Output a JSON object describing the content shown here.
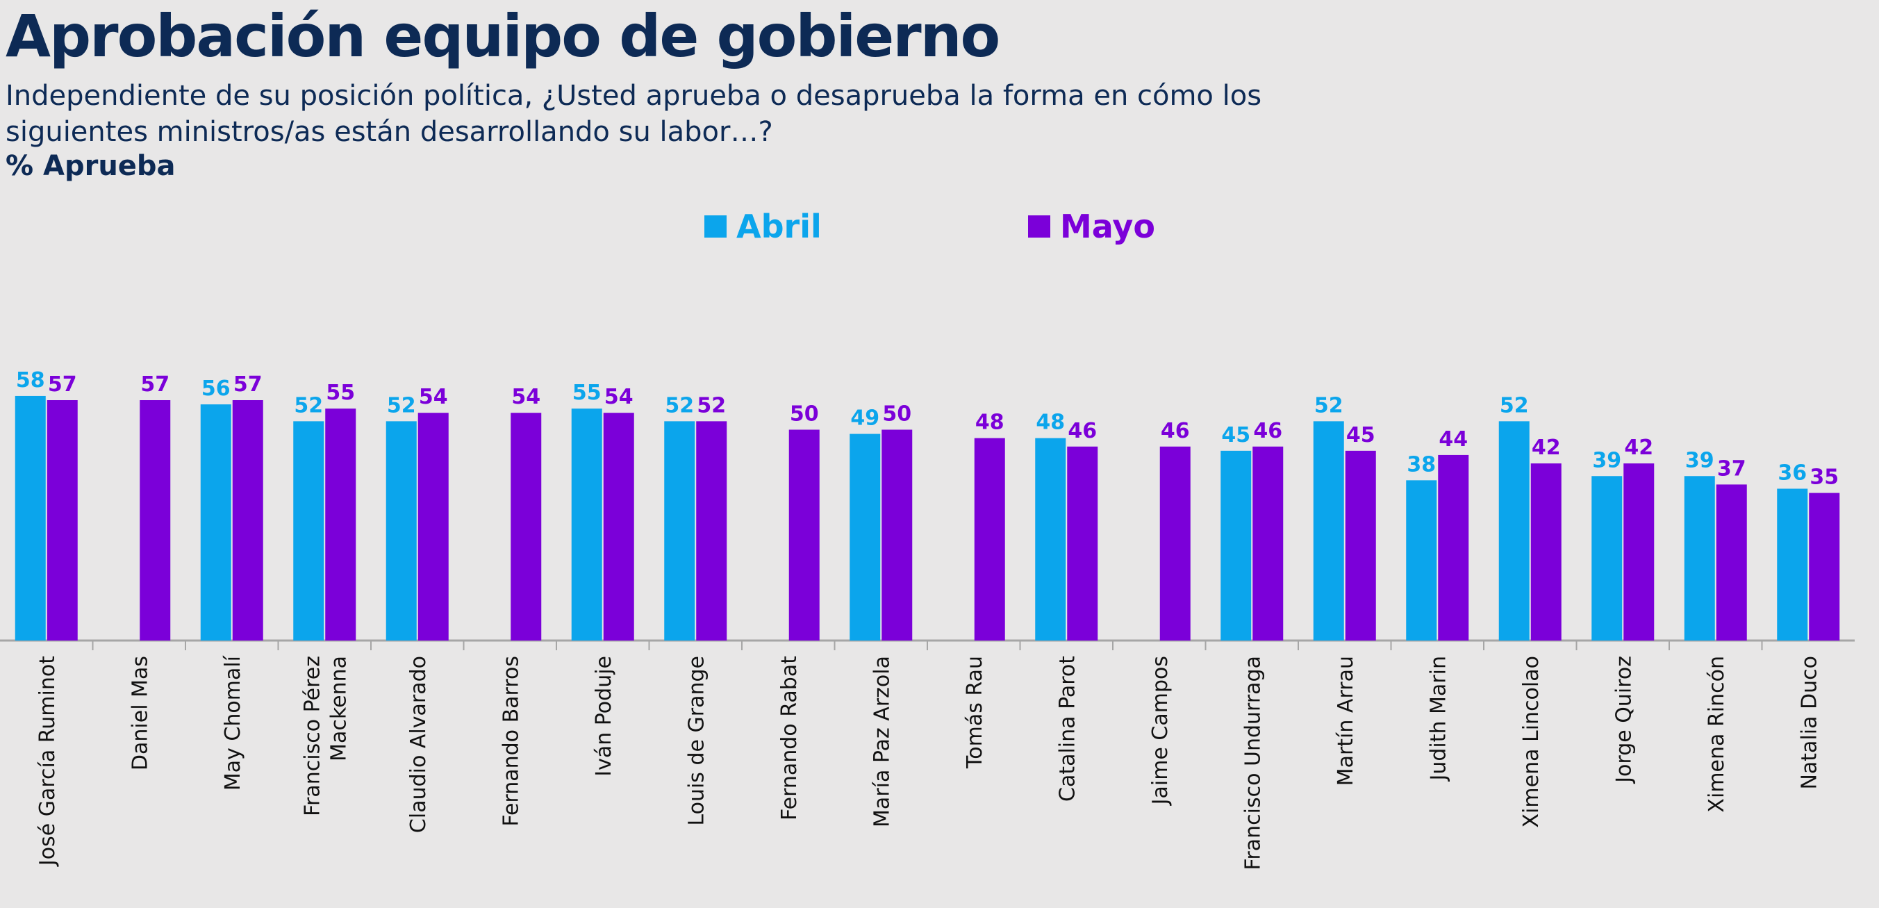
{
  "chart_data": {
    "type": "bar",
    "title": "Aprobación equipo de gobierno",
    "subtitle": "Independiente de su posición política, ¿Usted aprueba o desaprueba la forma en cómo los siguientes ministros/as están desarrollando su labor…?",
    "unit_label": "% Aprueba",
    "legend_position": "top-center",
    "grid": false,
    "ylim": [
      0,
      75
    ],
    "categories": [
      "José García Ruminot",
      "Daniel Mas",
      "May Chomalí",
      "Francisco Pérez Mackenna",
      "Claudio Alvarado",
      "Fernando Barros",
      "Iván Poduje",
      "Louis de Grange",
      "Fernando Rabat",
      "María Paz Arzola",
      "Tomás Rau",
      "Catalina Parot",
      "Jaime Campos",
      "Francisco Undurraga",
      "Martín Arrau",
      "Judith Marin",
      "Ximena Lincolao",
      "Jorge Quiroz",
      "Ximena Rincón",
      "Natalia Duco"
    ],
    "series": [
      {
        "name": "Abril",
        "color": "#0ba5ec",
        "values": [
          58,
          null,
          56,
          52,
          52,
          null,
          55,
          52,
          null,
          49,
          null,
          48,
          null,
          45,
          52,
          38,
          52,
          39,
          39,
          36
        ]
      },
      {
        "name": "Mayo",
        "color": "#7b00d9",
        "values": [
          57,
          57,
          57,
          55,
          54,
          54,
          54,
          52,
          50,
          50,
          48,
          46,
          46,
          46,
          45,
          44,
          42,
          42,
          37,
          35
        ]
      }
    ]
  }
}
